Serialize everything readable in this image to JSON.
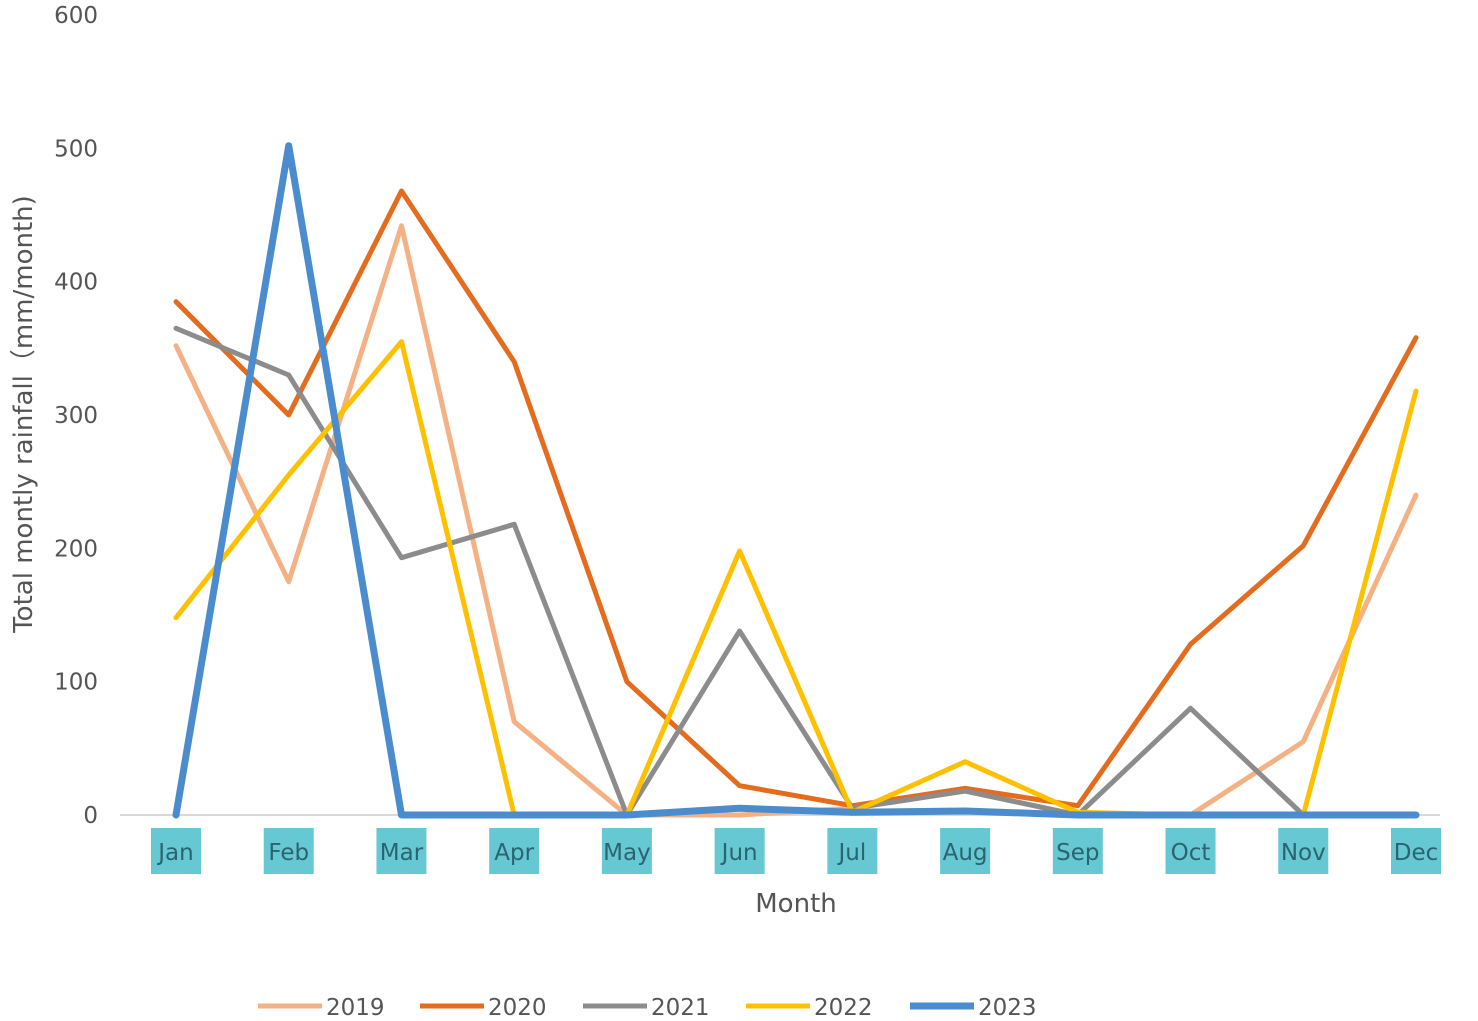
{
  "chart_data": {
    "type": "line",
    "title": "",
    "xlabel": "Month",
    "ylabel": "Total montly rainfall（mm/month)",
    "categories": [
      "Jan",
      "Feb",
      "Mar",
      "Apr",
      "May",
      "Jun",
      "Jul",
      "Aug",
      "Sep",
      "Oct",
      "Nov",
      "Dec"
    ],
    "ylim": [
      0,
      600
    ],
    "yticks": [
      0,
      100,
      200,
      300,
      400,
      500,
      600
    ],
    "grid": false,
    "legend_position": "bottom",
    "tick_highlight_color": "#66c8d3",
    "series": [
      {
        "name": "2019",
        "color": "#f4b183",
        "values": [
          352,
          175,
          442,
          70,
          0,
          0,
          5,
          18,
          0,
          0,
          55,
          240
        ]
      },
      {
        "name": "2020",
        "color": "#e46c1e",
        "values": [
          385,
          300,
          468,
          340,
          100,
          22,
          7,
          20,
          7,
          128,
          202,
          358
        ]
      },
      {
        "name": "2021",
        "color": "#8c8c8c",
        "values": [
          365,
          330,
          193,
          218,
          0,
          138,
          5,
          18,
          0,
          80,
          0,
          0
        ]
      },
      {
        "name": "2022",
        "color": "#ffc000",
        "values": [
          148,
          255,
          355,
          0,
          0,
          198,
          2,
          40,
          2,
          0,
          0,
          318
        ]
      },
      {
        "name": "2023",
        "color": "#4a8ccd",
        "values": [
          0,
          502,
          0,
          0,
          0,
          5,
          2,
          3,
          0,
          0,
          0,
          0
        ]
      }
    ]
  }
}
